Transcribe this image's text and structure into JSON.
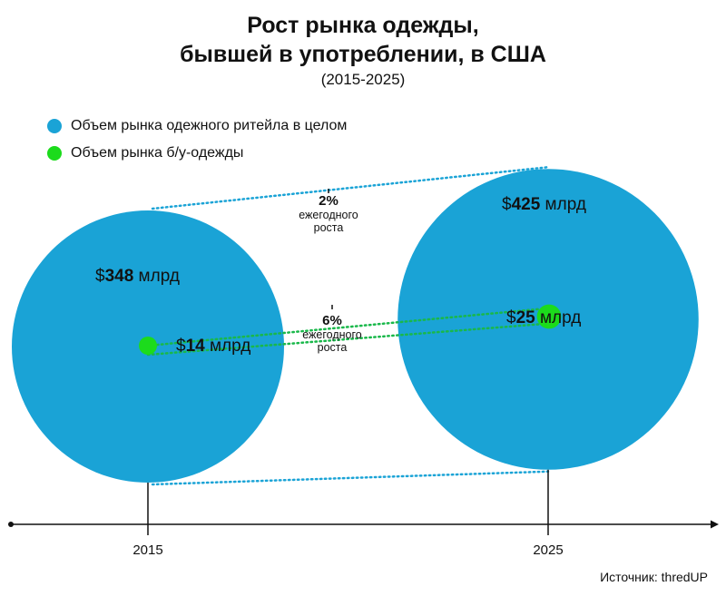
{
  "title_line1": "Рост рынка одежды,",
  "title_line2": "бывшей в употреблении, в США",
  "subtitle": "(2015-2025)",
  "source": "Источник: thredUP",
  "colors": {
    "total": "#1AA3D6",
    "resale": "#1CDB1C",
    "total_link": "#1AA3D6",
    "resale_link": "#19B84A"
  },
  "chart_data": {
    "type": "bubble",
    "title": "Рост рынка одежды, бывшей в употреблении, в США",
    "subtitle": "(2015-2025)",
    "x": [
      "2015",
      "2025"
    ],
    "series": [
      {
        "name": "Объем рынка одежного ритейла в целом",
        "values": [
          348,
          425
        ],
        "labels": [
          {
            "pre": "$",
            "num": "348",
            "post": " млрд"
          },
          {
            "pre": "$",
            "num": "425",
            "post": " млрд"
          }
        ]
      },
      {
        "name": "Объем рынка б/у-одежды",
        "values": [
          14,
          25
        ],
        "labels": [
          {
            "pre": "$",
            "num": "14",
            "post": " млрд"
          },
          {
            "pre": "$",
            "num": "25",
            "post": " млрд"
          }
        ]
      }
    ],
    "growth_annotations": [
      {
        "series": "Объем рынка одежного ритейла в целом",
        "pct": "2%",
        "line1": "ежегодного",
        "line2": "роста"
      },
      {
        "series": "Объем рынка б/у-одежды",
        "pct": "6%",
        "line1": "ежегодного",
        "line2": "роста"
      }
    ]
  }
}
